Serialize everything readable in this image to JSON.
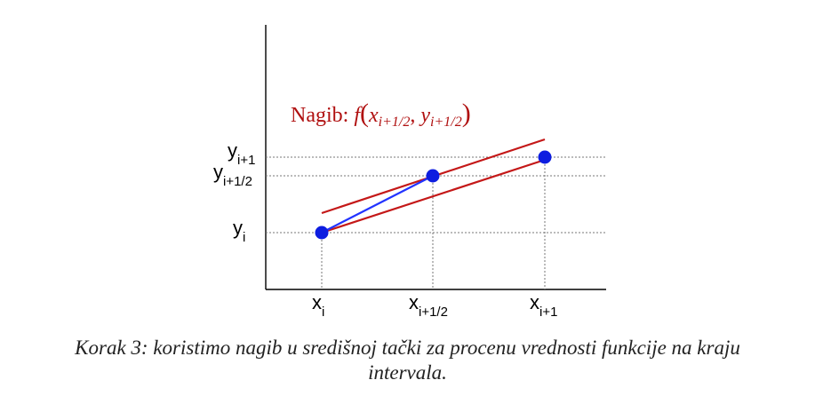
{
  "labels": {
    "x": [
      {
        "base": "x",
        "sub": "i"
      },
      {
        "base": "x",
        "sub": "i+1/2"
      },
      {
        "base": "x",
        "sub": "i+1"
      }
    ],
    "y": [
      {
        "base": "y",
        "sub": "i"
      },
      {
        "base": "y",
        "sub": "i+1/2"
      },
      {
        "base": "y",
        "sub": "i+1"
      }
    ]
  },
  "slope_label": {
    "prefix": "Nagib: ",
    "func": "f",
    "x_base": "x",
    "x_sub": "i+1/2",
    "y_base": "y",
    "y_sub": "i+1/2"
  },
  "caption": {
    "line1": "Korak 3: koristimo nagib u središnoj tački za procenu vrednosti funkcije na kraju",
    "line2": "intervala."
  },
  "colors": {
    "point": "#0d1de0",
    "half_step_line": "#2233ff",
    "slope_lines": "#c41818",
    "label_text": "#b01010"
  }
}
